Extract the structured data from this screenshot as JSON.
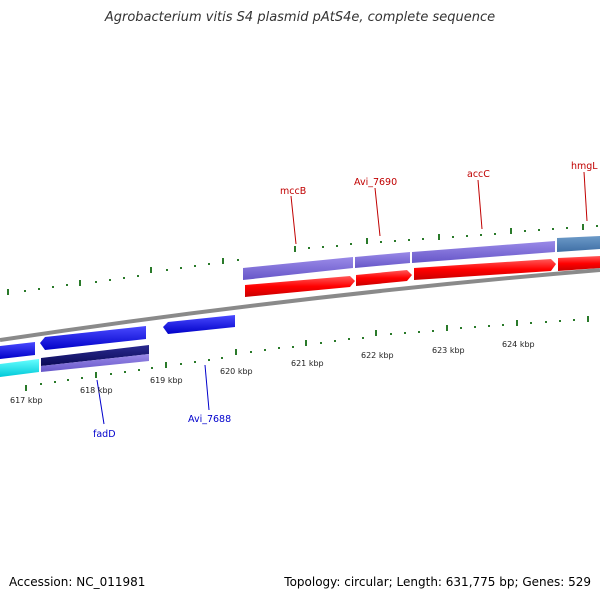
{
  "title": "Agrobacterium vitis S4 plasmid pAtS4e, complete sequence",
  "footer": {
    "accession": "Accession: NC_011981",
    "info": "Topology: circular; Length: 631,775 bp; Genes: 529"
  },
  "colors": {
    "backbone": "#8a8a8a",
    "forward_label": "#c00000",
    "reverse_label": "#0000cc",
    "tick": "#2a7a2a"
  },
  "gene_labels": {
    "mccB": "mccB",
    "avi7690": "Avi_7690",
    "accC": "accC",
    "hmgL": "hmgL",
    "fadD": "fadD",
    "avi7688": "Avi_7688"
  },
  "scale_labels": [
    "617 kbp",
    "618 kbp",
    "619 kbp",
    "620 kbp",
    "621 kbp",
    "622 kbp",
    "623 kbp",
    "624 kbp"
  ]
}
